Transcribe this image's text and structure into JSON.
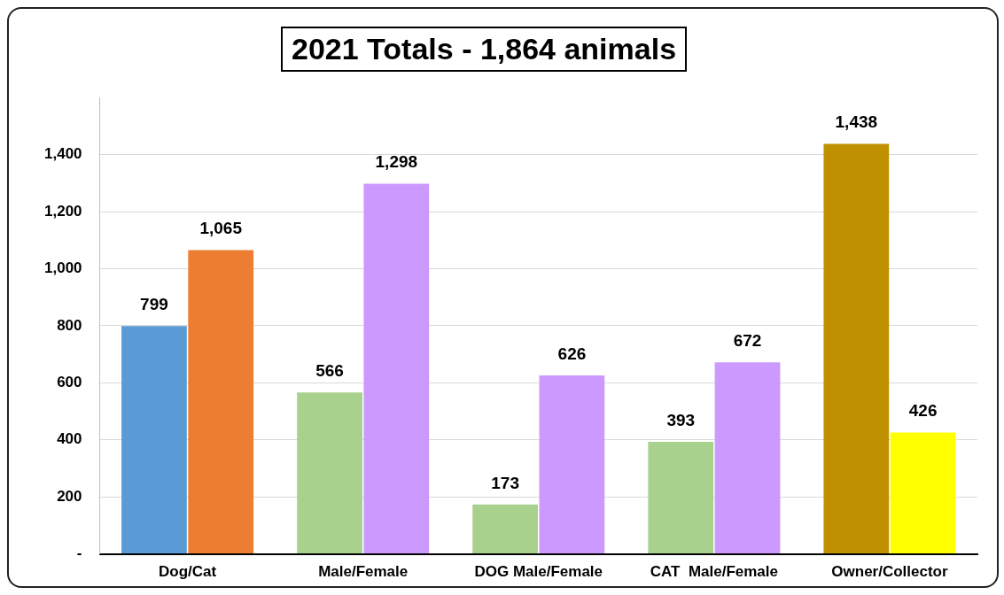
{
  "chart_data": {
    "type": "bar",
    "title": "2021 Totals - 1,864 animals",
    "categories": [
      "Dog/Cat",
      "Male/Female",
      "DOG Male/Female",
      "CAT  Male/Female",
      "Owner/Collector"
    ],
    "series": [
      {
        "colors": [
          "#5b9bd5",
          "#a9d18e",
          "#a9d18e",
          "#a9d18e",
          "#bf9000"
        ],
        "values": [
          799,
          566,
          173,
          393,
          1438
        ],
        "value_labels": [
          "799",
          "566",
          "173",
          "393",
          "1,438"
        ]
      },
      {
        "colors": [
          "#ed7d31",
          "#cc99ff",
          "#cc99ff",
          "#cc99ff",
          "#ffff00"
        ],
        "values": [
          1065,
          1298,
          626,
          672,
          426
        ],
        "value_labels": [
          "1,065",
          "1,298",
          "626",
          "672",
          "426"
        ]
      }
    ],
    "ylim": [
      0,
      1600
    ],
    "yticks": [
      {
        "value": 0,
        "label": "-"
      },
      {
        "value": 200,
        "label": "200"
      },
      {
        "value": 400,
        "label": "400"
      },
      {
        "value": 600,
        "label": "600"
      },
      {
        "value": 800,
        "label": "800"
      },
      {
        "value": 1000,
        "label": "1,000"
      },
      {
        "value": 1200,
        "label": "1,200"
      },
      {
        "value": 1400,
        "label": "1,400"
      }
    ],
    "grid": "y",
    "legend": false
  }
}
